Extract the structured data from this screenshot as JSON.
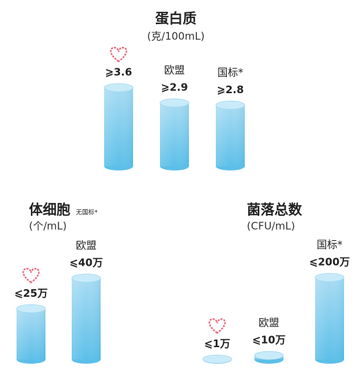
{
  "chart_data": [
    {
      "type": "bar",
      "title": "蛋白质",
      "subtitle": "(克/100mL)",
      "categories": [
        null,
        "欧盟",
        "国标*"
      ],
      "values": [
        3.6,
        2.9,
        2.8
      ],
      "value_labels": [
        "⩾3.6",
        "⩾2.9",
        "⩾2.8"
      ]
    },
    {
      "type": "bar",
      "title": "体细胞",
      "note": "无国标*",
      "subtitle": "(个/mL)",
      "categories": [
        null,
        "欧盟"
      ],
      "values": [
        25,
        40
      ],
      "value_labels": [
        "⩽25万",
        "⩽40万"
      ]
    },
    {
      "type": "bar",
      "title": "菌落总数",
      "subtitle": "(CFU/mL)",
      "categories": [
        null,
        "欧盟",
        "国标*"
      ],
      "values": [
        1,
        10,
        200
      ],
      "value_labels": [
        "⩽1万",
        "⩽10万",
        "⩽200万"
      ]
    }
  ]
}
